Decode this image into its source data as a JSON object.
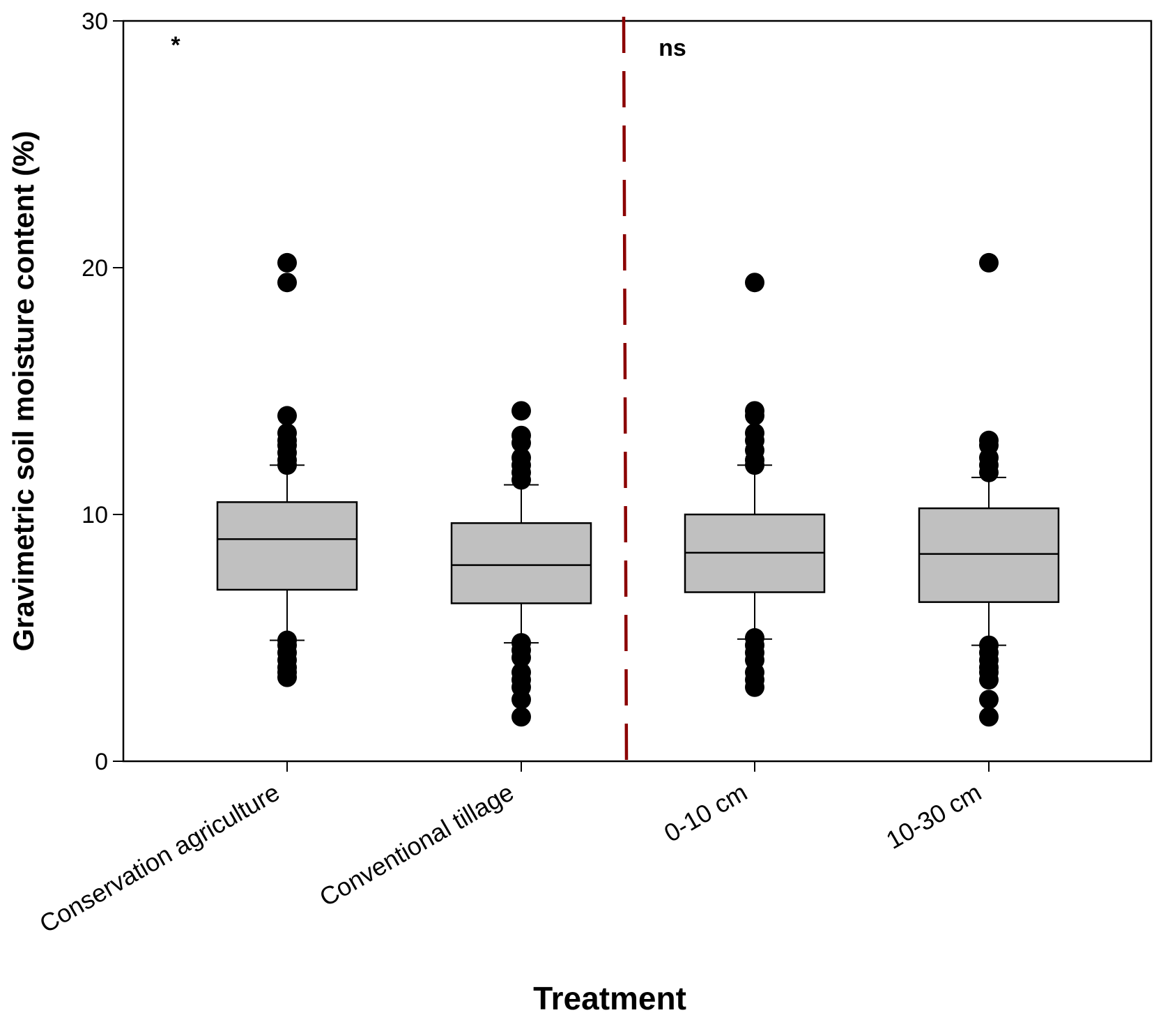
{
  "chart_data": {
    "type": "box",
    "title": "",
    "xlabel": "Treatment",
    "ylabel": "Gravimetric soil moisture content (%)",
    "ylim": [
      0,
      30
    ],
    "yticks": [
      0,
      10,
      20,
      30
    ],
    "grid": false,
    "colors": {
      "box_fill": "#c0c0c0",
      "line": "#000000",
      "divider": "#8b0000"
    },
    "categories": [
      "Conservation agriculture",
      "Conventional tillage",
      "0-10 cm",
      "10-30 cm"
    ],
    "boxes": [
      {
        "q1": 6.95,
        "median": 9.0,
        "q3": 10.5,
        "whisker_low": 4.9,
        "whisker_high": 12.0,
        "outliers": [
          20.2,
          19.4,
          14.0,
          13.3,
          13.0,
          12.8,
          12.5,
          12.2,
          12.0,
          4.9,
          4.7,
          4.4,
          4.1,
          3.8,
          3.6,
          3.4
        ]
      },
      {
        "q1": 6.4,
        "median": 7.95,
        "q3": 9.65,
        "whisker_low": 4.8,
        "whisker_high": 11.2,
        "outliers": [
          14.2,
          13.2,
          12.9,
          12.3,
          12.0,
          11.7,
          11.4,
          4.8,
          4.5,
          4.2,
          3.6,
          3.3,
          3.0,
          2.5,
          1.8
        ]
      },
      {
        "q1": 6.85,
        "median": 8.45,
        "q3": 10.0,
        "whisker_low": 4.95,
        "whisker_high": 12.0,
        "outliers": [
          19.4,
          14.2,
          14.0,
          13.3,
          13.0,
          12.6,
          12.2,
          12.0,
          5.0,
          4.7,
          4.4,
          4.1,
          3.6,
          3.3,
          3.0
        ]
      },
      {
        "q1": 6.45,
        "median": 8.4,
        "q3": 10.25,
        "whisker_low": 4.7,
        "whisker_high": 11.5,
        "outliers": [
          20.2,
          13.0,
          12.8,
          12.3,
          12.0,
          11.7,
          4.7,
          4.4,
          4.1,
          3.8,
          3.6,
          3.3,
          2.5,
          1.8
        ]
      }
    ],
    "divider": {
      "type": "vertical dashed line",
      "between_categories": [
        1,
        2
      ]
    },
    "annotations": [
      {
        "text": "*",
        "group": "left"
      },
      {
        "text": "ns",
        "group": "right"
      }
    ]
  }
}
